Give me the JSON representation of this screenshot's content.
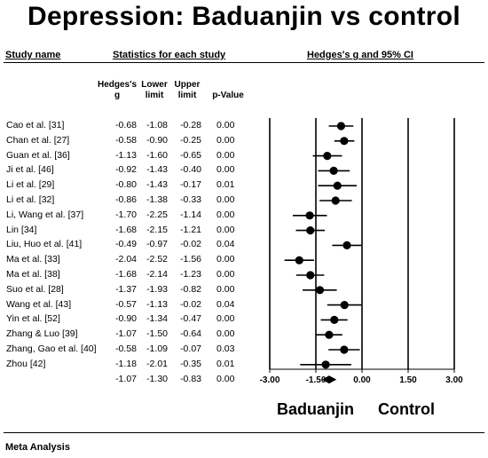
{
  "title": "Depression: Baduanjin vs control",
  "headers": {
    "study_name": "Study name",
    "statistics": "Statistics for each study",
    "effect": "Hedges's g and 95% CI"
  },
  "columns": {
    "g_top": "Hedges's",
    "g_bottom": "g",
    "lower_top": "Lower",
    "lower_bottom": "limit",
    "upper_top": "Upper",
    "upper_bottom": "limit",
    "p": "p-Value"
  },
  "x_labels": {
    "left": "Baduanjin",
    "right": "Control"
  },
  "footer": "Meta Analysis",
  "colors": {
    "marker": "#000000",
    "text": "#000000",
    "background": "#ffffff"
  },
  "chart_data": {
    "type": "forest",
    "xlim": [
      -3.0,
      3.0
    ],
    "xticks": [
      "-3.00",
      "-1.50",
      "0.00",
      "1.50",
      "3.00"
    ],
    "studies": [
      {
        "name": "Cao et al. [31]",
        "g": -0.68,
        "lower": -1.08,
        "upper": -0.28,
        "p": "0.00",
        "g_text": "-0.68",
        "lower_text": "-1.08",
        "upper_text": "-0.28"
      },
      {
        "name": "Chan et al. [27]",
        "g": -0.58,
        "lower": -0.9,
        "upper": -0.25,
        "p": "0.00",
        "g_text": "-0.58",
        "lower_text": "-0.90",
        "upper_text": "-0.25"
      },
      {
        "name": "Guan et al. [36]",
        "g": -1.13,
        "lower": -1.6,
        "upper": -0.65,
        "p": "0.00",
        "g_text": "-1.13",
        "lower_text": "-1.60",
        "upper_text": "-0.65"
      },
      {
        "name": "Ji et al. [46]",
        "g": -0.92,
        "lower": -1.43,
        "upper": -0.4,
        "p": "0.00",
        "g_text": "-0.92",
        "lower_text": "-1.43",
        "upper_text": "-0.40"
      },
      {
        "name": "Li et al. [29]",
        "g": -0.8,
        "lower": -1.43,
        "upper": -0.17,
        "p": "0.01",
        "g_text": "-0.80",
        "lower_text": "-1.43",
        "upper_text": "-0.17"
      },
      {
        "name": "Li et al. [32]",
        "g": -0.86,
        "lower": -1.38,
        "upper": -0.33,
        "p": "0.00",
        "g_text": "-0.86",
        "lower_text": "-1.38",
        "upper_text": "-0.33"
      },
      {
        "name": "Li, Wang et al. [37]",
        "g": -1.7,
        "lower": -2.25,
        "upper": -1.14,
        "p": "0.00",
        "g_text": "-1.70",
        "lower_text": "-2.25",
        "upper_text": "-1.14"
      },
      {
        "name": "Lin [34]",
        "g": -1.68,
        "lower": -2.15,
        "upper": -1.21,
        "p": "0.00",
        "g_text": "-1.68",
        "lower_text": "-2.15",
        "upper_text": "-1.21"
      },
      {
        "name": "Liu, Huo et al. [41]",
        "g": -0.49,
        "lower": -0.97,
        "upper": -0.02,
        "p": "0.04",
        "g_text": "-0.49",
        "lower_text": "-0.97",
        "upper_text": "-0.02"
      },
      {
        "name": "Ma et al. [33]",
        "g": -2.04,
        "lower": -2.52,
        "upper": -1.56,
        "p": "0.00",
        "g_text": "-2.04",
        "lower_text": "-2.52",
        "upper_text": "-1.56"
      },
      {
        "name": "Ma et al. [38]",
        "g": -1.68,
        "lower": -2.14,
        "upper": -1.23,
        "p": "0.00",
        "g_text": "-1.68",
        "lower_text": "-2.14",
        "upper_text": "-1.23"
      },
      {
        "name": "Suo et al. [28]",
        "g": -1.37,
        "lower": -1.93,
        "upper": -0.82,
        "p": "0.00",
        "g_text": "-1.37",
        "lower_text": "-1.93",
        "upper_text": "-0.82"
      },
      {
        "name": "Wang et al. [43]",
        "g": -0.57,
        "lower": -1.13,
        "upper": -0.02,
        "p": "0.04",
        "g_text": "-0.57",
        "lower_text": "-1.13",
        "upper_text": "-0.02"
      },
      {
        "name": "Yin et al. [52]",
        "g": -0.9,
        "lower": -1.34,
        "upper": -0.47,
        "p": "0.00",
        "g_text": "-0.90",
        "lower_text": "-1.34",
        "upper_text": "-0.47"
      },
      {
        "name": "Zhang & Luo [39]",
        "g": -1.07,
        "lower": -1.5,
        "upper": -0.64,
        "p": "0.00",
        "g_text": "-1.07",
        "lower_text": "-1.50",
        "upper_text": "-0.64"
      },
      {
        "name": "Zhang, Gao et al. [40]",
        "g": -0.58,
        "lower": -1.09,
        "upper": -0.07,
        "p": "0.03",
        "g_text": "-0.58",
        "lower_text": "-1.09",
        "upper_text": "-0.07"
      },
      {
        "name": "Zhou [42]",
        "g": -1.18,
        "lower": -2.01,
        "upper": -0.35,
        "p": "0.01",
        "g_text": "-1.18",
        "lower_text": "-2.01",
        "upper_text": "-0.35"
      }
    ],
    "summary": {
      "name": "",
      "g": -1.07,
      "lower": -1.3,
      "upper": -0.83,
      "p": "0.00",
      "g_text": "-1.07",
      "lower_text": "-1.30",
      "upper_text": "-0.83"
    }
  }
}
